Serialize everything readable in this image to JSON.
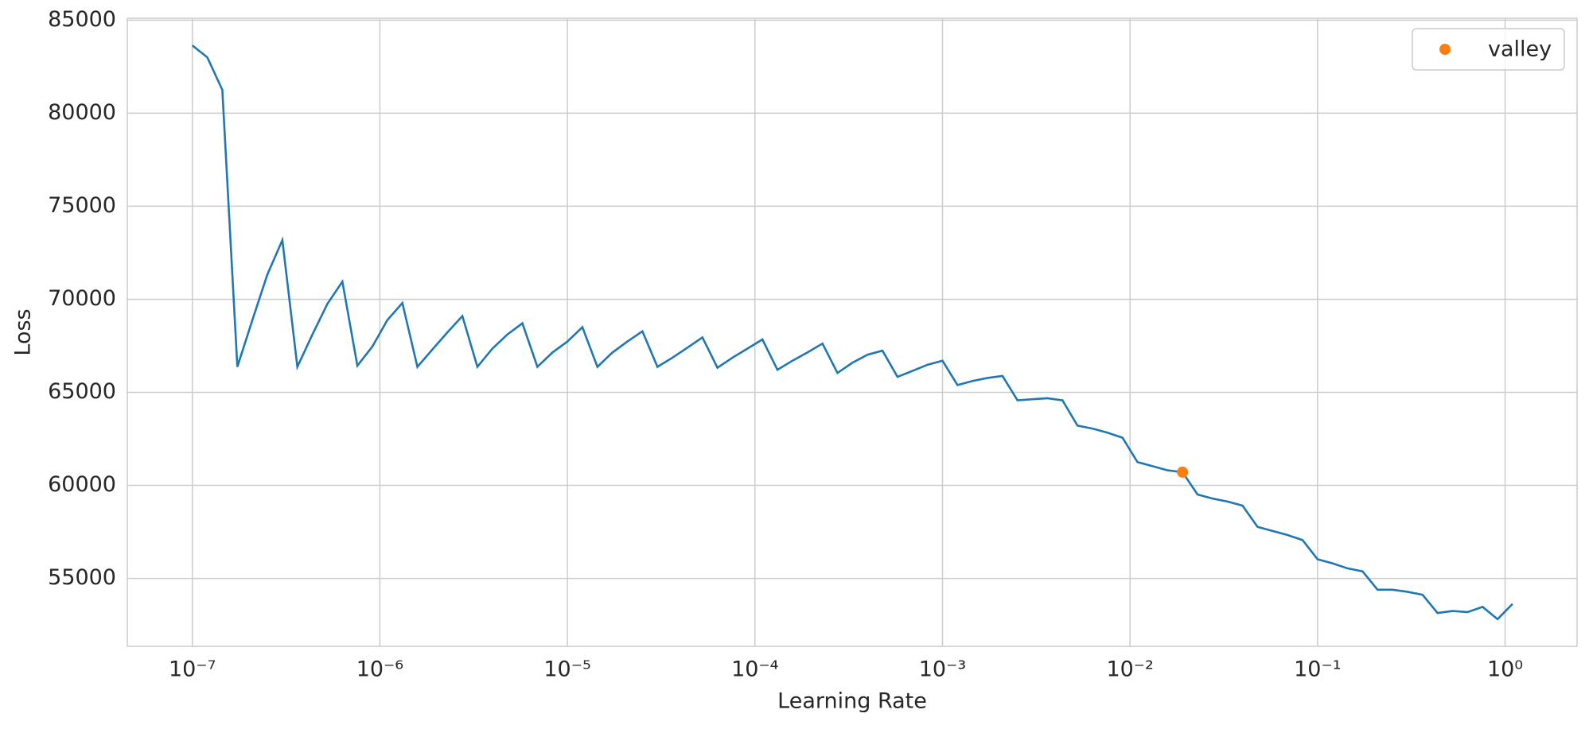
{
  "chart_data": {
    "type": "line",
    "xlabel": "Learning Rate",
    "ylabel": "Loss",
    "xscale": "log",
    "grid": true,
    "legend": "upper right",
    "xlim": [
      4.5e-08,
      2.42
    ],
    "ylim": [
      51350,
      85100
    ],
    "xticks": [
      {
        "value": 1e-07,
        "label": "10⁻⁷"
      },
      {
        "value": 1e-06,
        "label": "10⁻⁶"
      },
      {
        "value": 1e-05,
        "label": "10⁻⁵"
      },
      {
        "value": 0.0001,
        "label": "10⁻⁴"
      },
      {
        "value": 0.001,
        "label": "10⁻³"
      },
      {
        "value": 0.01,
        "label": "10⁻²"
      },
      {
        "value": 0.1,
        "label": "10⁻¹"
      },
      {
        "value": 1,
        "label": "10⁰"
      }
    ],
    "yticks": [
      55000,
      60000,
      65000,
      70000,
      75000,
      80000,
      85000
    ],
    "x": [
      1e-07,
      1.202e-07,
      1.445e-07,
      1.738e-07,
      2.089e-07,
      2.512e-07,
      3.02e-07,
      3.631e-07,
      4.365e-07,
      5.248e-07,
      6.31e-07,
      7.586e-07,
      9.12e-07,
      1.096e-06,
      1.318e-06,
      1.585e-06,
      1.905e-06,
      2.291e-06,
      2.754e-06,
      3.311e-06,
      3.981e-06,
      4.786e-06,
      5.754e-06,
      6.918e-06,
      8.318e-06,
      1e-05,
      1.202e-05,
      1.445e-05,
      1.738e-05,
      2.089e-05,
      2.512e-05,
      3.02e-05,
      3.631e-05,
      4.365e-05,
      5.248e-05,
      6.31e-05,
      7.586e-05,
      9.12e-05,
      0.0001096,
      0.0001318,
      0.0001585,
      0.0001905,
      0.0002291,
      0.0002754,
      0.0003311,
      0.0003981,
      0.0004786,
      0.0005754,
      0.0006918,
      0.0008318,
      0.001,
      0.001202,
      0.001445,
      0.001738,
      0.002089,
      0.002512,
      0.00302,
      0.003631,
      0.004365,
      0.005248,
      0.00631,
      0.007586,
      0.00912,
      0.01096,
      0.01318,
      0.01585,
      0.01905,
      0.02291,
      0.02754,
      0.03311,
      0.03981,
      0.04786,
      0.05754,
      0.06918,
      0.08318,
      0.1,
      0.1202,
      0.1445,
      0.1738,
      0.2089,
      0.2512,
      0.302,
      0.3631,
      0.4365,
      0.5248,
      0.631,
      0.7586,
      0.912,
      1.096
    ],
    "line": {
      "color": "#1f77b4",
      "values": [
        83640,
        83000,
        81250,
        66370,
        68880,
        71330,
        73180,
        66370,
        68100,
        69750,
        70950,
        66430,
        67460,
        68880,
        69800,
        66370,
        67300,
        68220,
        69100,
        66370,
        67350,
        68110,
        68710,
        66370,
        67140,
        67730,
        68500,
        66370,
        67140,
        67730,
        68280,
        66370,
        66860,
        67400,
        67950,
        66320,
        66860,
        67350,
        67840,
        66210,
        66700,
        67140,
        67620,
        66040,
        66590,
        67020,
        67240,
        65830,
        66150,
        66480,
        66700,
        65390,
        65610,
        65770,
        65880,
        64570,
        64630,
        64680,
        64570,
        63210,
        63050,
        62830,
        62560,
        61250,
        61030,
        60810,
        60710,
        59510,
        59290,
        59130,
        58910,
        57770,
        57550,
        57330,
        57060,
        56030,
        55810,
        55540,
        55380,
        54390,
        54390,
        54280,
        54120,
        53140,
        53250,
        53190,
        53470,
        52810,
        53630
      ]
    },
    "valley": {
      "name": "valley",
      "color": "#ff7f0e",
      "x": 0.01905,
      "y": 60710
    }
  }
}
